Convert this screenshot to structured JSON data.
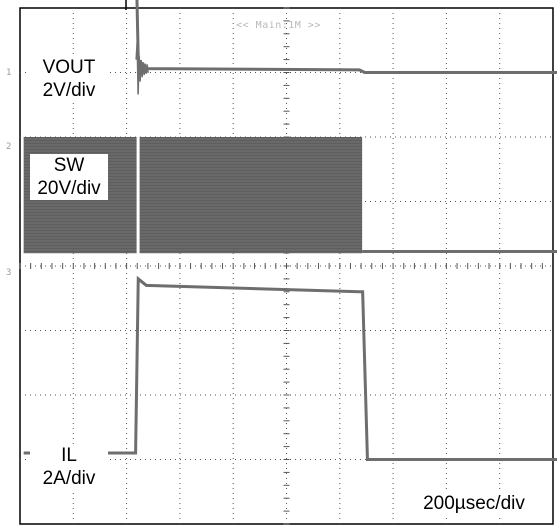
{
  "chart_data": {
    "type": "line",
    "header": "<< Main:1M >>",
    "x_unit": "µs",
    "x_range": [
      -420,
      1600
    ],
    "event_time": 0,
    "channels": [
      {
        "name": "VOUT",
        "scale_label": "2V/div",
        "volts_per_div": 2,
        "ground_ref_div": 1.0,
        "points": [
          [
            -420,
            5.0
          ],
          [
            -2,
            5.0
          ],
          [
            10,
            0.4
          ],
          [
            40,
            0.12
          ],
          [
            840,
            0.08
          ],
          [
            860,
            0.0
          ],
          [
            1600,
            0.0
          ]
        ],
        "ringing_at_event": true
      },
      {
        "name": "SW",
        "scale_label": "20V/div",
        "volts_per_div": 20,
        "ground_ref_div": 3.8,
        "switching_band": {
          "start": -420,
          "end": 850,
          "low_v": 0,
          "high_v": 36
        },
        "points_after": [
          [
            850,
            0.5
          ],
          [
            1600,
            0.5
          ]
        ]
      },
      {
        "name": "IL",
        "scale_label": "2A/div",
        "volts_per_div": 2,
        "ground_ref_div": 7.0,
        "points": [
          [
            -420,
            0.2
          ],
          [
            0,
            0.2
          ],
          [
            10,
            5.6
          ],
          [
            40,
            5.4
          ],
          [
            840,
            5.2
          ],
          [
            852,
            5.2
          ],
          [
            870,
            0.0
          ],
          [
            1600,
            0.0
          ]
        ]
      }
    ],
    "time_label": "200µsec/div",
    "time_per_div": 200,
    "grid": true,
    "divisions_x": 10,
    "divisions_y": 8
  },
  "text": {
    "vout_name": "VOUT",
    "vout_scale": "2V/div",
    "sw_name": "SW",
    "sw_scale": "20V/div",
    "il_name": "IL",
    "il_scale": "2A/div",
    "time_scale": "200µsec/div",
    "header": "<< Main:1M >>",
    "marker_1": "1",
    "marker_2": "2",
    "marker_3": "3"
  }
}
